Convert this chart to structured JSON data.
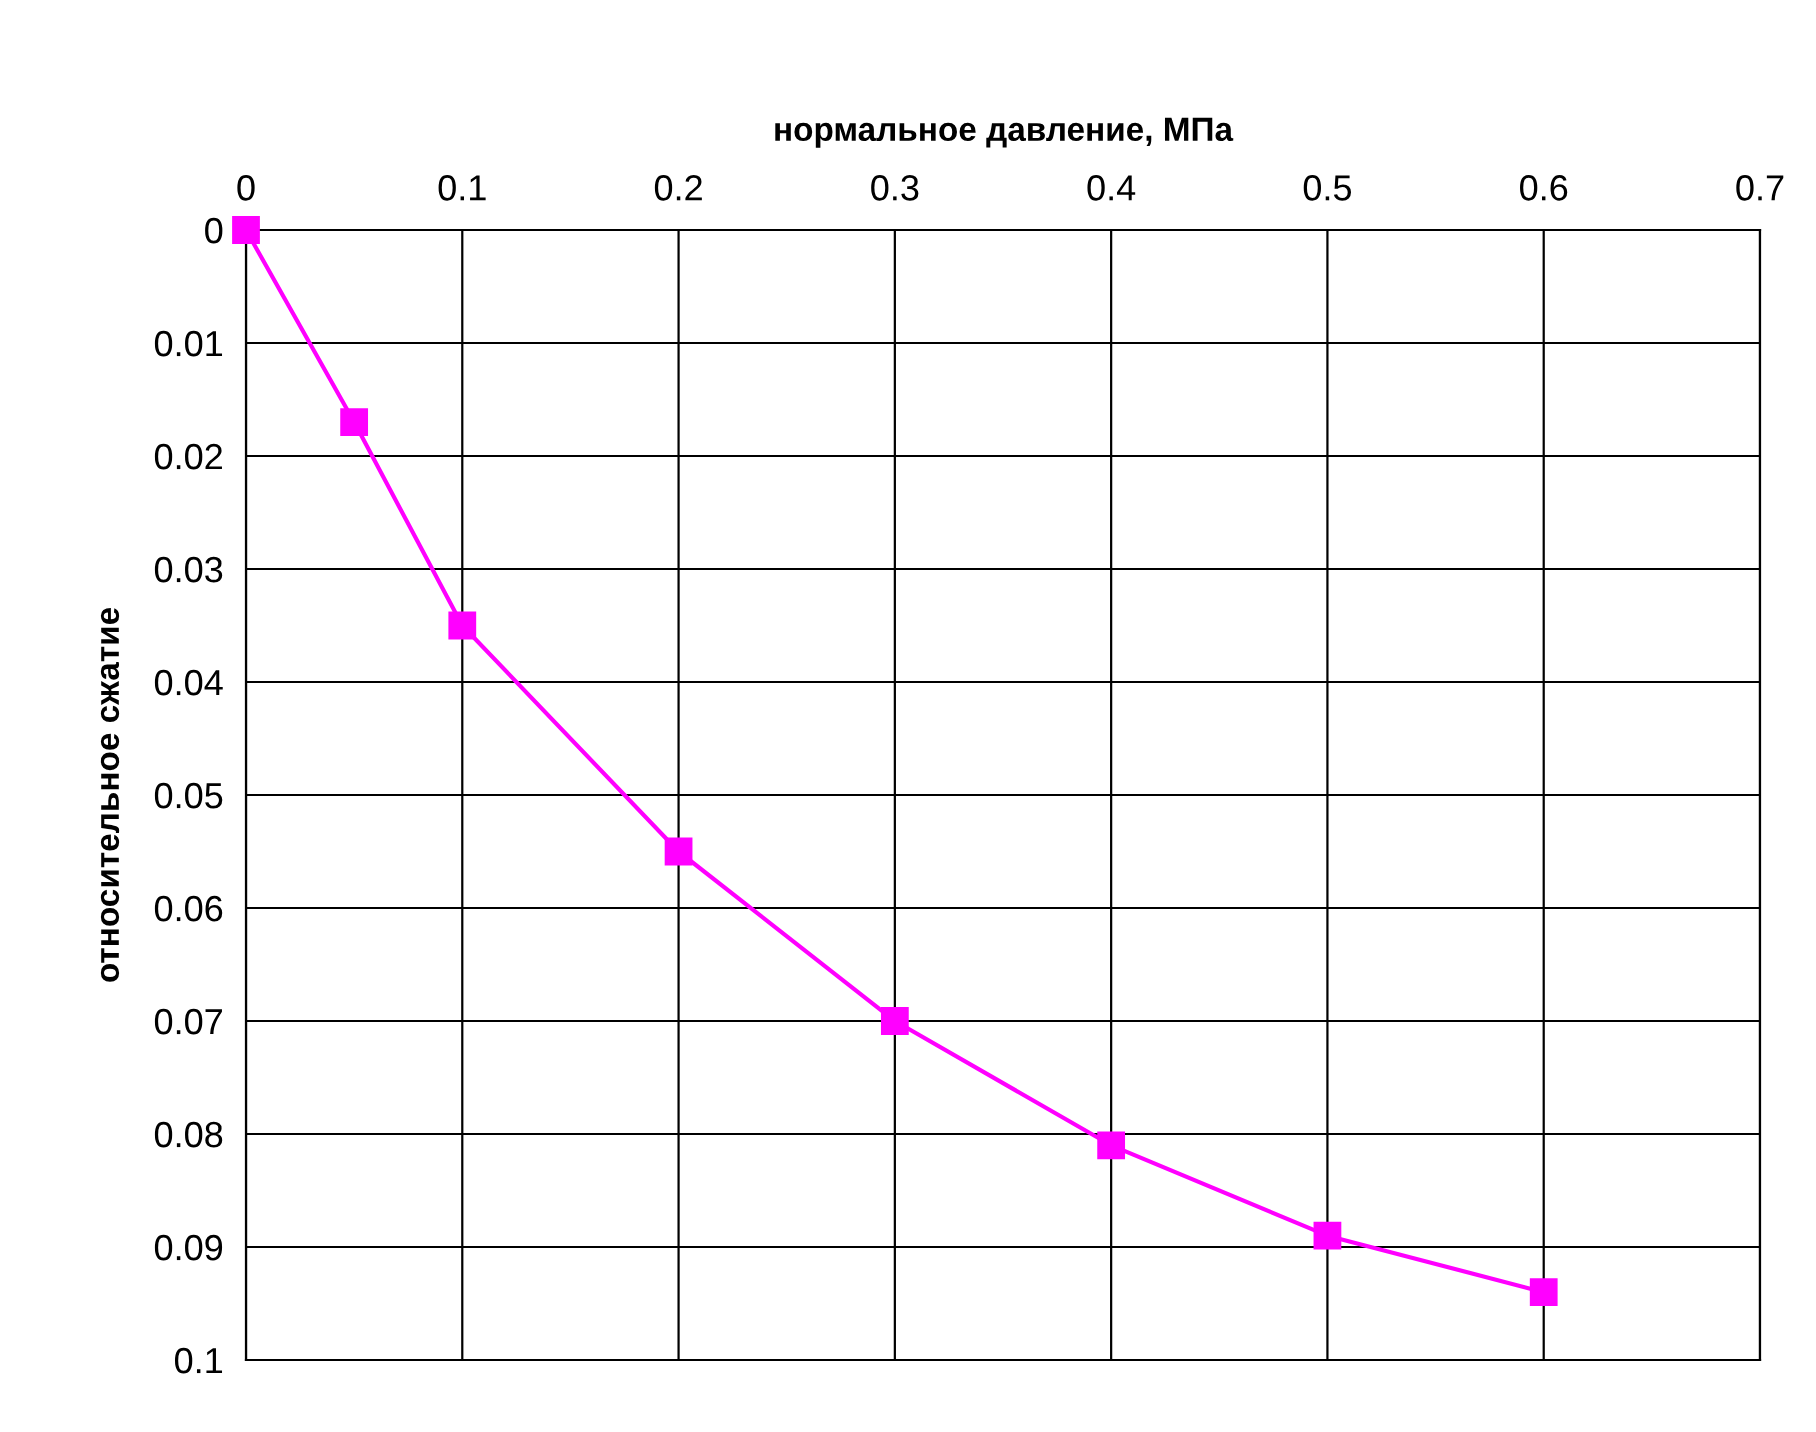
{
  "chart_data": {
    "type": "line",
    "xlabel": "нормальное давление, МПа",
    "ylabel": "относительное сжатие",
    "x": [
      0,
      0.05,
      0.1,
      0.2,
      0.3,
      0.4,
      0.5,
      0.6
    ],
    "series": [
      {
        "color": "#ff00ff",
        "values": [
          0,
          0.017,
          0.035,
          0.055,
          0.07,
          0.081,
          0.089,
          0.094
        ]
      }
    ],
    "xlim": [
      0,
      0.7
    ],
    "xticks": [
      0,
      0.1,
      0.2,
      0.3,
      0.4,
      0.5,
      0.6,
      0.7
    ],
    "ylim": [
      0.1,
      0
    ],
    "yticks": [
      0,
      0.01,
      0.02,
      0.03,
      0.04,
      0.05,
      0.06,
      0.07,
      0.08,
      0.09,
      0.1
    ],
    "grid": true,
    "marker": "square",
    "line_style": "solid",
    "legend": false
  }
}
